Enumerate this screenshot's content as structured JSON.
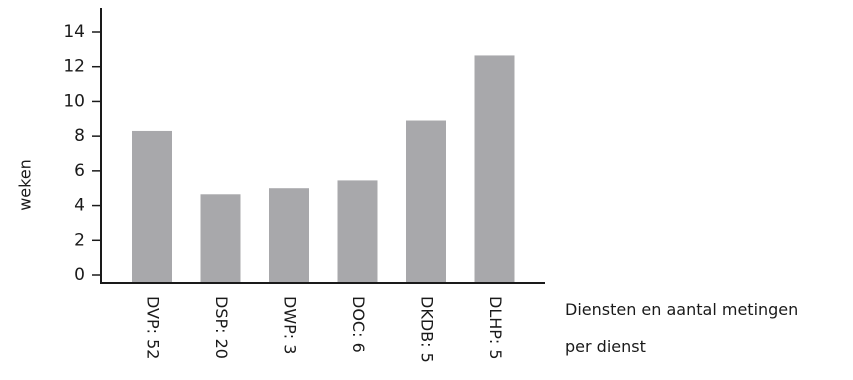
{
  "chart_data": {
    "type": "bar",
    "categories": [
      "DVP: 52",
      "DSP: 20",
      "DWP: 3",
      "DOC: 6",
      "DKDB: 5",
      "DLHP: 5"
    ],
    "values": [
      8.3,
      4.65,
      5.0,
      5.45,
      8.9,
      12.65
    ],
    "title": "",
    "xlabel": "Diensten en aantal metingen per dienst",
    "xlabel_lines": [
      "Diensten en aantal metingen",
      "per dienst"
    ],
    "ylabel": "weken",
    "ylim": [
      0,
      15
    ],
    "yticks": [
      0,
      2,
      4,
      6,
      8,
      10,
      12,
      14
    ],
    "grid": false,
    "bar_color": "#a8a8ab",
    "axis_color": "#1a1a1a"
  }
}
